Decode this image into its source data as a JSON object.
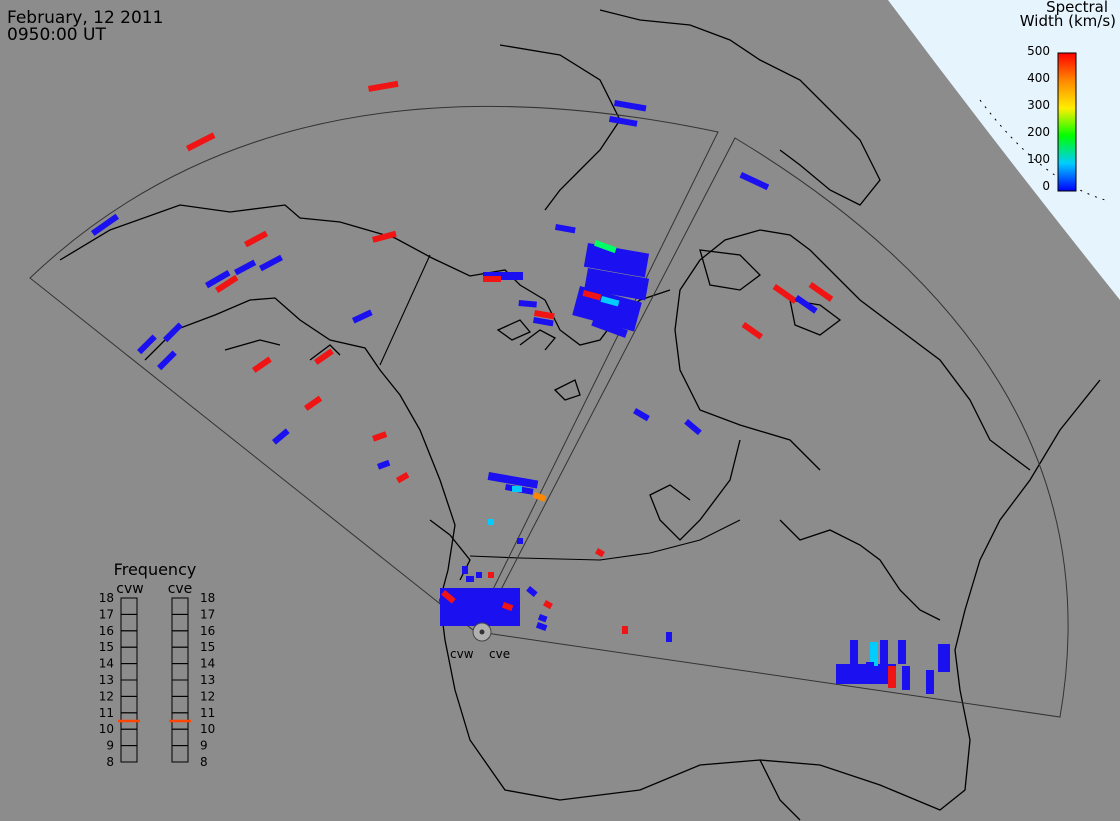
{
  "header": {
    "date": "February, 12 2011",
    "time": "0950:00 UT"
  },
  "colorbar": {
    "title_line1": "Spectral",
    "title_line2": "Width (km/s)",
    "ticks": [
      "500",
      "400",
      "300",
      "200",
      "100",
      "0"
    ],
    "stops": [
      {
        "value": 0,
        "color": "#0000ff"
      },
      {
        "value": 100,
        "color": "#00ccff"
      },
      {
        "value": 200,
        "color": "#00ff00"
      },
      {
        "value": 300,
        "color": "#ffee00"
      },
      {
        "value": 400,
        "color": "#ff8800"
      },
      {
        "value": 500,
        "color": "#ff0000"
      }
    ]
  },
  "frequency_panel": {
    "title": "Frequency",
    "radars": [
      {
        "name": "cvw",
        "frequency_mhz": 10.5
      },
      {
        "name": "cve",
        "frequency_mhz": 10.5
      }
    ],
    "scale": [
      "18",
      "17",
      "16",
      "15",
      "14",
      "13",
      "12",
      "11",
      "10",
      "9",
      "8"
    ]
  },
  "radar_sites": [
    {
      "name": "cvw"
    },
    {
      "name": "cve"
    }
  ],
  "colors": {
    "background": "#8c8c8c",
    "outside_map": "#e6f5fd",
    "coastline": "#000000",
    "fov_outline": "#333333",
    "low_width": "#1a10f0",
    "high_width": "#f01414",
    "freq_marker": "#ff4400"
  }
}
